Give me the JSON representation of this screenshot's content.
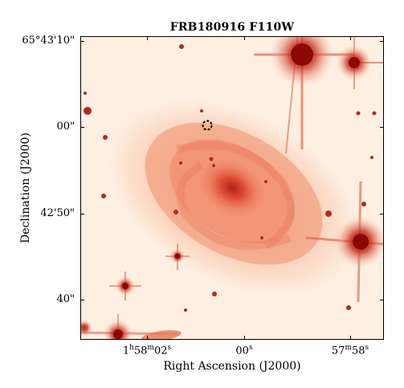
{
  "figure": {
    "title": "FRB180916 F110W",
    "xlabel": "Right Ascension (J2000)",
    "ylabel": "Declination (J2000)",
    "y_ticks": [
      {
        "label": "65°43'10\""
      },
      {
        "label": "00\""
      },
      {
        "label": "42'50\""
      },
      {
        "label": "40\""
      }
    ],
    "x_ticks": [
      {
        "h": "1",
        "h_unit": "h",
        "m": "58",
        "m_unit": "m",
        "s": "02",
        "s_unit": "s"
      },
      {
        "h": "",
        "h_unit": "",
        "m": "",
        "m_unit": "",
        "s": "00",
        "s_unit": "s"
      },
      {
        "h": "",
        "h_unit": "",
        "m": "57",
        "m_unit": "m",
        "s": "58",
        "s_unit": "s"
      }
    ],
    "colormap": "OrRd-like (cream to dark red)",
    "marker": "dashed circle at FRB position"
  }
}
